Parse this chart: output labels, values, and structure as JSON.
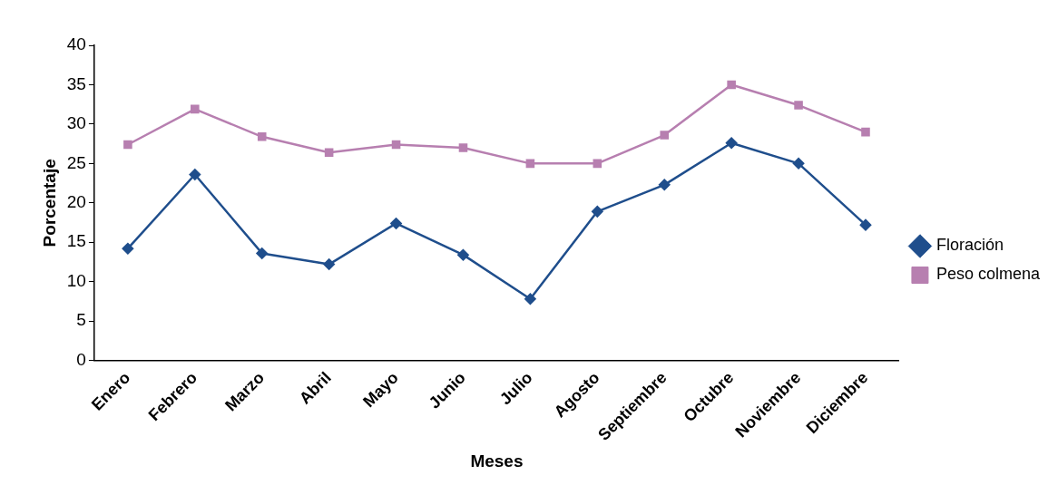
{
  "chart_data": {
    "type": "line",
    "xlabel": "Meses",
    "ylabel": "Porcentaje",
    "categories": [
      "Enero",
      "Febrero",
      "Marzo",
      "Abril",
      "Mayo",
      "Junio",
      "Julio",
      "Agosto",
      "Septiembre",
      "Octubre",
      "Noviembre",
      "Diciembre"
    ],
    "series": [
      {
        "name": "Floración",
        "color": "#1f4e8c",
        "marker": "diamond",
        "values": [
          14.2,
          23.6,
          13.6,
          12.2,
          17.4,
          13.4,
          7.8,
          18.9,
          22.3,
          27.6,
          25,
          17.2
        ]
      },
      {
        "name": "Peso colmena",
        "color": "#b77fb0",
        "marker": "square",
        "values": [
          27.4,
          31.9,
          28.4,
          26.4,
          27.4,
          27,
          25,
          25,
          28.6,
          35,
          32.4,
          29
        ]
      }
    ],
    "ylim": [
      0,
      40
    ],
    "yticks": [
      0,
      5,
      10,
      15,
      20,
      25,
      30,
      35,
      40
    ],
    "grid": false,
    "legend": "right",
    "line_style": "solid"
  }
}
